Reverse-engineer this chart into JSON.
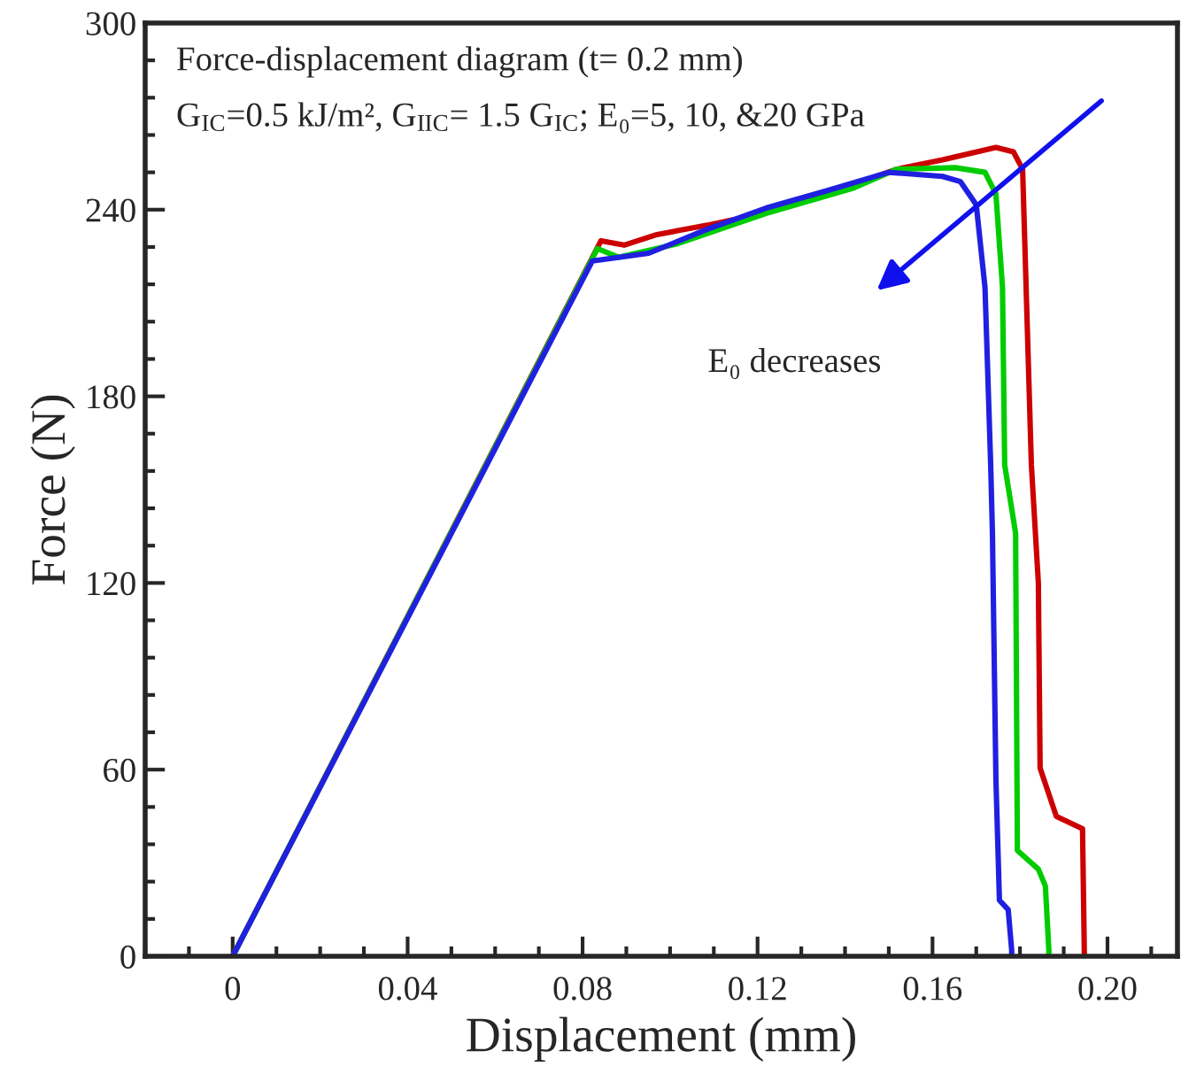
{
  "chart_data": {
    "type": "line",
    "xlabel": "Displacement (mm)",
    "ylabel": "Force (N)",
    "annotations": [
      "Force-displacement diagram (t= 0.2 mm)",
      "G$_{IC}$=0.5 kJ/m², G$_{IIC}$= 1.5 G$_{IC}$; E₀=5, 10, &20 GPa",
      "E₀ decreases"
    ],
    "xlim": [
      -0.02,
      0.216
    ],
    "xticks": [
      {
        "value": 0,
        "label": "0"
      },
      0.04,
      0.08,
      0.12,
      0.16,
      {
        "value": 0.2,
        "label": "0.20"
      }
    ],
    "ylim": [
      0,
      300
    ],
    "yticks": [
      0,
      60,
      120,
      180,
      240,
      300
    ],
    "grid": false,
    "legend": false,
    "marker": "none",
    "line_style": "solid",
    "series": [
      {
        "color": "#cc0000",
        "x": [
          0,
          0.0842,
          0.0895,
          0.097,
          0.1085,
          0.1219,
          0.1356,
          0.1518,
          0.1623,
          0.1745,
          0.1785,
          0.1806,
          0.1826,
          0.1842,
          0.1846,
          0.1883,
          0.1943,
          0.1947,
          0.1947
        ],
        "values": [
          0,
          230,
          228.6,
          232,
          235,
          239,
          245,
          253,
          256,
          260,
          258.6,
          253,
          158,
          120,
          60.5,
          45,
          41,
          2,
          0
        ]
      },
      {
        "color": "#00cc00",
        "x": [
          0,
          0.0834,
          0.0883,
          0.1016,
          0.1219,
          0.142,
          0.1518,
          0.1652,
          0.172,
          0.1745,
          0.176,
          0.1765,
          0.179,
          0.1794,
          0.1842,
          0.1858,
          0.1866,
          0.1866
        ],
        "values": [
          0,
          227.5,
          224.7,
          229,
          238.8,
          247,
          253,
          253.5,
          252,
          245,
          215,
          158,
          136,
          34,
          28,
          22.6,
          2,
          0
        ]
      },
      {
        "color": "#2020e0",
        "x": [
          0,
          0.0822,
          0.0951,
          0.1085,
          0.1219,
          0.1356,
          0.15,
          0.1623,
          0.1664,
          0.17,
          0.172,
          0.1733,
          0.1737,
          0.1745,
          0.1753,
          0.1773,
          0.1781,
          0.1781
        ],
        "values": [
          0,
          223.5,
          226,
          233.7,
          240.5,
          246,
          252,
          250.7,
          249,
          241.6,
          215,
          158,
          136,
          56.6,
          18,
          15,
          2,
          0
        ]
      }
    ]
  }
}
